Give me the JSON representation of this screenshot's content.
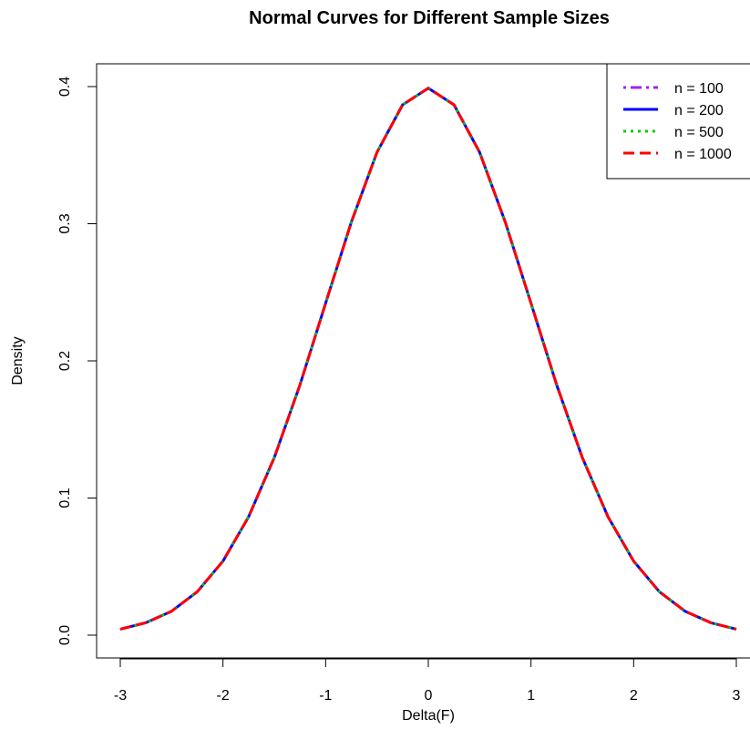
{
  "chart_data": {
    "type": "line",
    "title": "Normal Curves for Different Sample Sizes",
    "xlabel": "Delta(F)",
    "ylabel": "Density",
    "xlim": [
      -3,
      3
    ],
    "ylim": [
      0,
      0.4
    ],
    "x_ticks": [
      -3,
      -2,
      -1,
      0,
      1,
      2,
      3
    ],
    "x_tick_labels": [
      "-3",
      "-2",
      "-1",
      "0",
      "1",
      "2",
      "3"
    ],
    "y_ticks": [
      0.0,
      0.1,
      0.2,
      0.3,
      0.4
    ],
    "y_tick_labels": [
      "0.0",
      "0.1",
      "0.2",
      "0.3",
      "0.4"
    ],
    "grid": false,
    "legend_position": "top-right",
    "x": [
      -3,
      -2.75,
      -2.5,
      -2.25,
      -2,
      -1.75,
      -1.5,
      -1.25,
      -1,
      -0.75,
      -0.5,
      -0.25,
      0,
      0.25,
      0.5,
      0.75,
      1,
      1.25,
      1.5,
      1.75,
      2,
      2.25,
      2.5,
      2.75,
      3
    ],
    "series": [
      {
        "name": "n = 100",
        "color": "#a020f0",
        "dash": "dotdash",
        "values": [
          0.0044,
          0.0091,
          0.0175,
          0.0317,
          0.054,
          0.0863,
          0.1295,
          0.1826,
          0.242,
          0.3011,
          0.3521,
          0.3867,
          0.3989,
          0.3867,
          0.3521,
          0.3011,
          0.242,
          0.1826,
          0.1295,
          0.0863,
          0.054,
          0.0317,
          0.0175,
          0.0091,
          0.0044
        ]
      },
      {
        "name": "n = 200",
        "color": "#0000ff",
        "dash": "solid",
        "values": [
          0.0044,
          0.0091,
          0.0175,
          0.0317,
          0.054,
          0.0863,
          0.1295,
          0.1826,
          0.242,
          0.3011,
          0.3521,
          0.3867,
          0.3989,
          0.3867,
          0.3521,
          0.3011,
          0.242,
          0.1826,
          0.1295,
          0.0863,
          0.054,
          0.0317,
          0.0175,
          0.0091,
          0.0044
        ]
      },
      {
        "name": "n = 500",
        "color": "#00cd00",
        "dash": "dotted",
        "values": [
          0.0044,
          0.0091,
          0.0175,
          0.0317,
          0.054,
          0.0863,
          0.1295,
          0.1826,
          0.242,
          0.3011,
          0.3521,
          0.3867,
          0.3989,
          0.3867,
          0.3521,
          0.3011,
          0.242,
          0.1826,
          0.1295,
          0.0863,
          0.054,
          0.0317,
          0.0175,
          0.0091,
          0.0044
        ]
      },
      {
        "name": "n = 1000",
        "color": "#ff0000",
        "dash": "dashed",
        "values": [
          0.0044,
          0.0091,
          0.0175,
          0.0317,
          0.054,
          0.0863,
          0.1295,
          0.1826,
          0.242,
          0.3011,
          0.3521,
          0.3867,
          0.3989,
          0.3867,
          0.3521,
          0.3011,
          0.242,
          0.1826,
          0.1295,
          0.0863,
          0.054,
          0.0317,
          0.0175,
          0.0091,
          0.0044
        ]
      }
    ]
  }
}
